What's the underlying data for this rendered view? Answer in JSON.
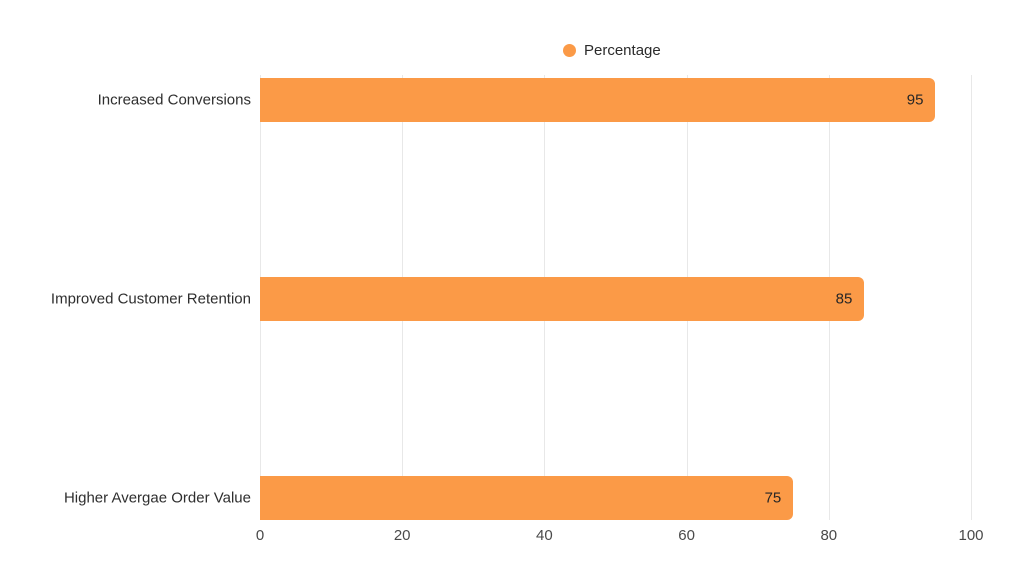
{
  "chart_data": {
    "type": "bar",
    "orientation": "horizontal",
    "title": "",
    "legend": [
      "Percentage"
    ],
    "legend_position": "top-center",
    "categories": [
      "Increased Conversions",
      "Improved Customer Retention",
      "Higher Avergae Order Value"
    ],
    "series": [
      {
        "name": "Percentage",
        "values": [
          95,
          85,
          75
        ]
      }
    ],
    "value_labels": [
      "95",
      "85",
      "75"
    ],
    "value_label_position": "inside-end",
    "xlabel": "",
    "ylabel": "",
    "xlim": [
      0,
      100
    ],
    "xticks": [
      0,
      20,
      40,
      60,
      80,
      100
    ],
    "grid": "vertical-only",
    "colors": {
      "bar": "#FB9A47",
      "gridline": "#E8E8E8",
      "category_text": "#2E2E2E",
      "tick_text": "#4A4A4A",
      "value_text": "#262626",
      "legend_text": "#2B2B2B",
      "background": "#FFFFFF"
    }
  }
}
